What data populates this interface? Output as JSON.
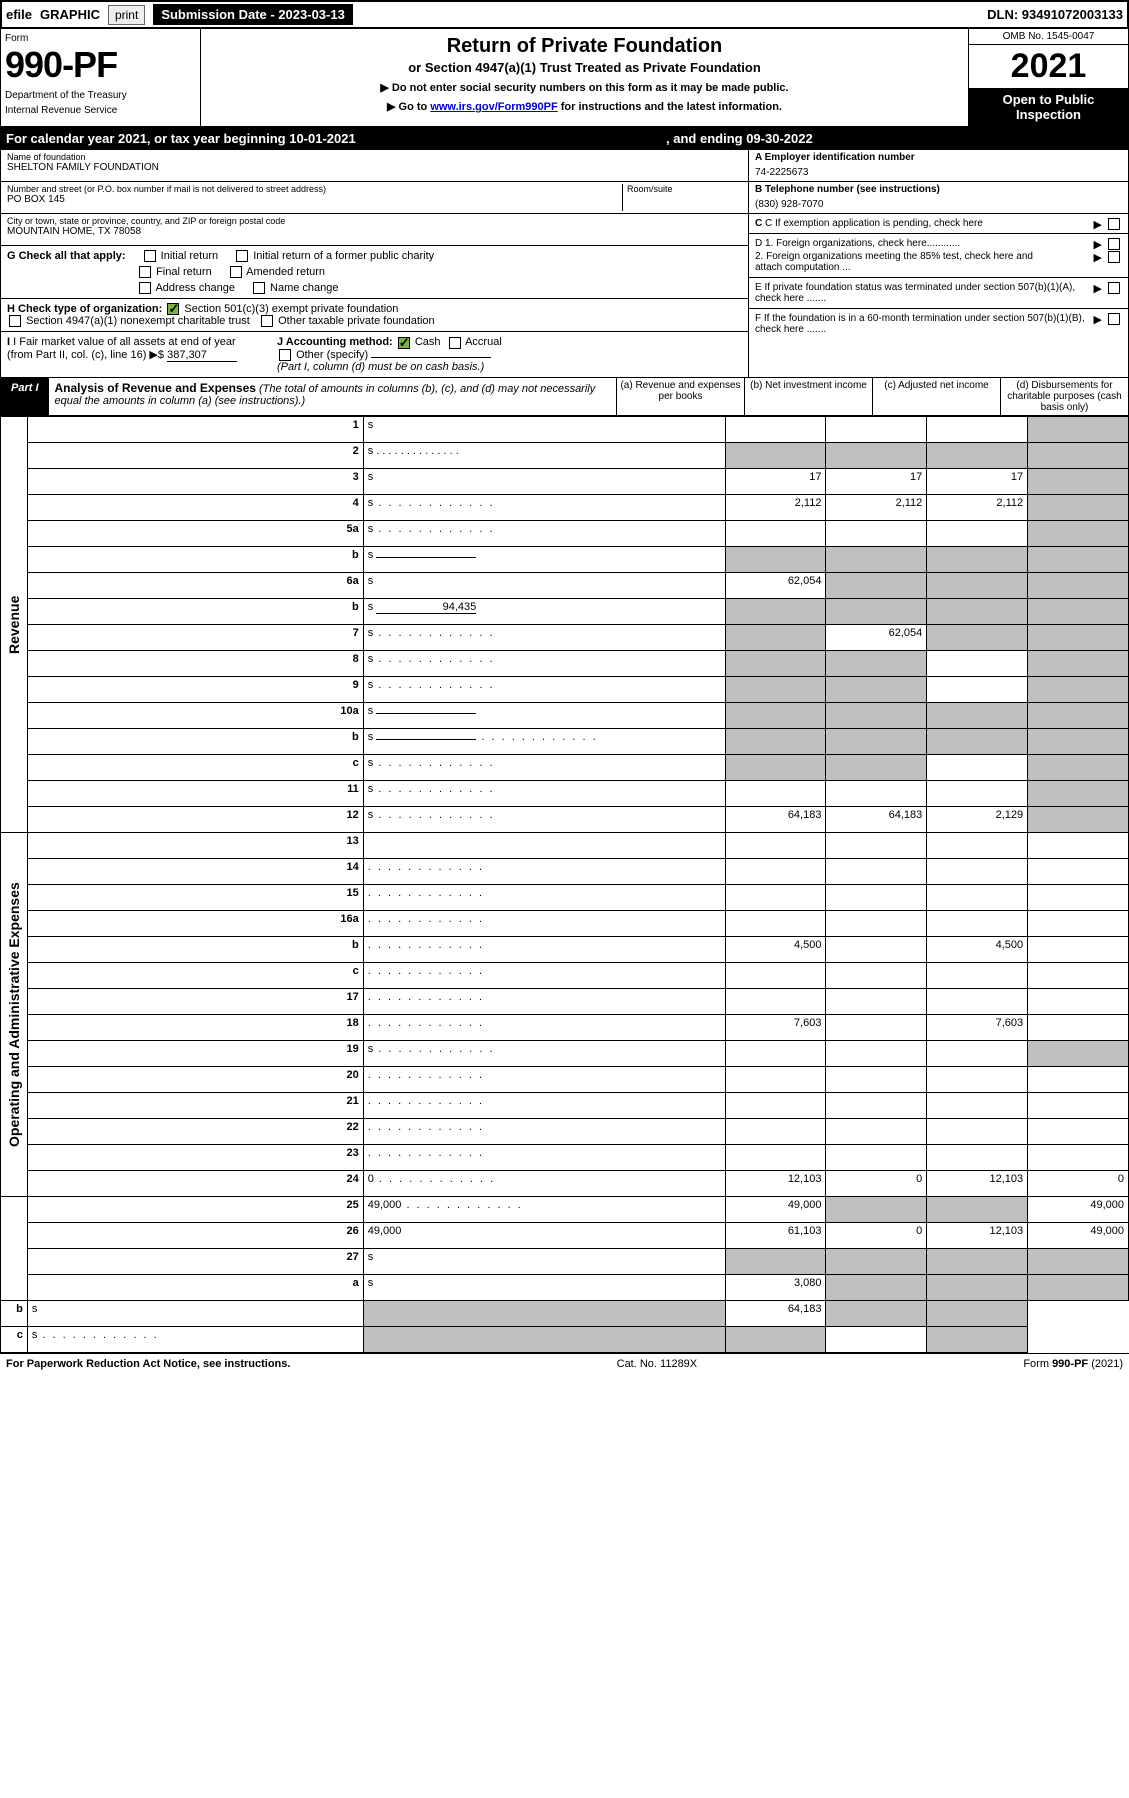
{
  "top": {
    "efile": "efile",
    "graphic": "GRAPHIC",
    "print": "print",
    "sub_label": "Submission Date - 2023-03-13",
    "dln": "DLN: 93491072003133"
  },
  "header": {
    "form_label": "Form",
    "form_no": "990-PF",
    "dept1": "Department of the Treasury",
    "dept2": "Internal Revenue Service",
    "title": "Return of Private Foundation",
    "subtitle": "or Section 4947(a)(1) Trust Treated as Private Foundation",
    "instr1": "▶ Do not enter social security numbers on this form as it may be made public.",
    "instr2_pre": "▶ Go to ",
    "instr2_link": "www.irs.gov/Form990PF",
    "instr2_post": " for instructions and the latest information.",
    "omb": "OMB No. 1545-0047",
    "year": "2021",
    "open": "Open to Public Inspection"
  },
  "cal": {
    "text1": "For calendar year 2021, or tax year beginning 10-01-2021",
    "text2": ", and ending 09-30-2022"
  },
  "entity": {
    "name_label": "Name of foundation",
    "name": "SHELTON FAMILY FOUNDATION",
    "addr_label": "Number and street (or P.O. box number if mail is not delivered to street address)",
    "addr": "PO BOX 145",
    "room_label": "Room/suite",
    "city_label": "City or town, state or province, country, and ZIP or foreign postal code",
    "city": "MOUNTAIN HOME, TX  78058",
    "a_label": "A Employer identification number",
    "a_val": "74-2225673",
    "b_label": "B Telephone number (see instructions)",
    "b_val": "(830) 928-7070",
    "c_label": "C If exemption application is pending, check here",
    "d1": "D 1. Foreign organizations, check here............",
    "d2": "2. Foreign organizations meeting the 85% test, check here and attach computation ...",
    "e_label": "E  If private foundation status was terminated under section 507(b)(1)(A), check here .......",
    "f_label": "F  If the foundation is in a 60-month termination under section 507(b)(1)(B), check here .......",
    "g_label": "G Check all that apply:",
    "g_opts": [
      "Initial return",
      "Initial return of a former public charity",
      "Final return",
      "Amended return",
      "Address change",
      "Name change"
    ],
    "h_label": "H Check type of organization:",
    "h1": "Section 501(c)(3) exempt private foundation",
    "h2": "Section 4947(a)(1) nonexempt charitable trust",
    "h3": "Other taxable private foundation",
    "i_label": "I Fair market value of all assets at end of year (from Part II, col. (c), line 16)",
    "i_val": "387,307",
    "j_label": "J Accounting method:",
    "j_cash": "Cash",
    "j_acc": "Accrual",
    "j_other": "Other (specify)",
    "j_note": "(Part I, column (d) must be on cash basis.)"
  },
  "part1": {
    "tag": "Part I",
    "title": "Analysis of Revenue and Expenses",
    "note": " (The total of amounts in columns (b), (c), and (d) may not necessarily equal the amounts in column (a) (see instructions).)",
    "cols": {
      "a": "(a)  Revenue and expenses per books",
      "b": "(b)  Net investment income",
      "c": "(c)  Adjusted net income",
      "d": "(d)  Disbursements for charitable purposes (cash basis only)"
    }
  },
  "sides": {
    "rev": "Revenue",
    "adm": "Operating and Administrative Expenses"
  },
  "rows": [
    {
      "n": "1",
      "d": "s",
      "a": "",
      "b": "",
      "c": ""
    },
    {
      "n": "2",
      "d": "s",
      "suffix": " .  .  .  .  .  .  .  .  .  .  .  .  .  .",
      "a": "s",
      "b": "s",
      "c": "s"
    },
    {
      "n": "3",
      "d": "s",
      "a": "17",
      "b": "17",
      "c": "17"
    },
    {
      "n": "4",
      "d": "s",
      "dots": true,
      "a": "2,112",
      "b": "2,112",
      "c": "2,112"
    },
    {
      "n": "5a",
      "d": "s",
      "dots": true,
      "a": "",
      "b": "",
      "c": ""
    },
    {
      "n": "b",
      "d": "s",
      "inline": "",
      "a": "s",
      "b": "s",
      "c": "s"
    },
    {
      "n": "6a",
      "d": "s",
      "a": "62,054",
      "b": "s",
      "c": "s"
    },
    {
      "n": "b",
      "d": "s",
      "inline": "94,435",
      "a": "s",
      "b": "s",
      "c": "s"
    },
    {
      "n": "7",
      "d": "s",
      "dots": true,
      "a": "s",
      "b": "62,054",
      "c": "s"
    },
    {
      "n": "8",
      "d": "s",
      "dots": true,
      "a": "s",
      "b": "s",
      "c": ""
    },
    {
      "n": "9",
      "d": "s",
      "dots": true,
      "a": "s",
      "b": "s",
      "c": ""
    },
    {
      "n": "10a",
      "d": "s",
      "inline": "",
      "a": "s",
      "b": "s",
      "c": "s"
    },
    {
      "n": "b",
      "d": "s",
      "dots": true,
      "inline": "",
      "a": "s",
      "b": "s",
      "c": "s"
    },
    {
      "n": "c",
      "d": "s",
      "dots": true,
      "a": "s",
      "b": "s",
      "c": ""
    },
    {
      "n": "11",
      "d": "s",
      "dots": true,
      "a": "",
      "b": "",
      "c": ""
    },
    {
      "n": "12",
      "d": "s",
      "dots": true,
      "a": "64,183",
      "b": "64,183",
      "c": "2,129"
    },
    {
      "n": "13",
      "d": "",
      "a": "",
      "b": "",
      "c": ""
    },
    {
      "n": "14",
      "d": "",
      "dots": true,
      "a": "",
      "b": "",
      "c": ""
    },
    {
      "n": "15",
      "d": "",
      "dots": true,
      "a": "",
      "b": "",
      "c": ""
    },
    {
      "n": "16a",
      "d": "",
      "dots": true,
      "a": "",
      "b": "",
      "c": ""
    },
    {
      "n": "b",
      "d": "",
      "dots": true,
      "a": "4,500",
      "b": "",
      "c": "4,500"
    },
    {
      "n": "c",
      "d": "",
      "dots": true,
      "a": "",
      "b": "",
      "c": ""
    },
    {
      "n": "17",
      "d": "",
      "dots": true,
      "a": "",
      "b": "",
      "c": ""
    },
    {
      "n": "18",
      "d": "",
      "dots": true,
      "a": "7,603",
      "b": "",
      "c": "7,603"
    },
    {
      "n": "19",
      "d": "s",
      "dots": true,
      "a": "",
      "b": "",
      "c": ""
    },
    {
      "n": "20",
      "d": "",
      "dots": true,
      "a": "",
      "b": "",
      "c": ""
    },
    {
      "n": "21",
      "d": "",
      "dots": true,
      "a": "",
      "b": "",
      "c": ""
    },
    {
      "n": "22",
      "d": "",
      "dots": true,
      "a": "",
      "b": "",
      "c": ""
    },
    {
      "n": "23",
      "d": "",
      "dots": true,
      "a": "",
      "b": "",
      "c": ""
    },
    {
      "n": "24",
      "d": "0",
      "dots": true,
      "a": "12,103",
      "b": "0",
      "c": "12,103"
    },
    {
      "n": "25",
      "d": "49,000",
      "dots": true,
      "a": "49,000",
      "b": "s",
      "c": "s"
    },
    {
      "n": "26",
      "d": "49,000",
      "a": "61,103",
      "b": "0",
      "c": "12,103"
    },
    {
      "n": "27",
      "d": "s",
      "a": "s",
      "b": "s",
      "c": "s"
    },
    {
      "n": "a",
      "d": "s",
      "a": "3,080",
      "b": "s",
      "c": "s"
    },
    {
      "n": "b",
      "d": "s",
      "a": "s",
      "b": "64,183",
      "c": "s"
    },
    {
      "n": "c",
      "d": "s",
      "dots": true,
      "a": "s",
      "b": "s",
      "c": ""
    }
  ],
  "footer": {
    "left": "For Paperwork Reduction Act Notice, see instructions.",
    "mid": "Cat. No. 11289X",
    "right": "Form 990-PF (2021)"
  }
}
